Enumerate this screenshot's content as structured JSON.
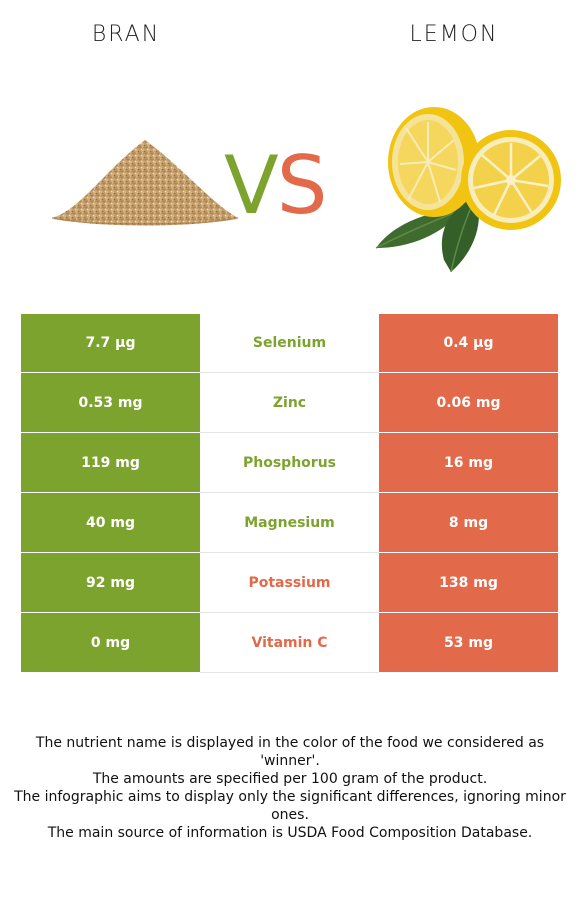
{
  "header": {
    "left_food": "BRAN",
    "right_food": "LEMON",
    "vs_v": "V",
    "vs_s": "S"
  },
  "colors": {
    "left_winner": "#7da32f",
    "right_winner": "#e2694a"
  },
  "nutrients": [
    {
      "name": "Selenium",
      "left": "7.7 µg",
      "right": "0.4 µg",
      "winner": "left"
    },
    {
      "name": "Zinc",
      "left": "0.53 mg",
      "right": "0.06 mg",
      "winner": "left"
    },
    {
      "name": "Phosphorus",
      "left": "119 mg",
      "right": "16 mg",
      "winner": "left"
    },
    {
      "name": "Magnesium",
      "left": "40 mg",
      "right": "8 mg",
      "winner": "left"
    },
    {
      "name": "Potassium",
      "left": "92 mg",
      "right": "138 mg",
      "winner": "right"
    },
    {
      "name": "Vitamin C",
      "left": "0 mg",
      "right": "53 mg",
      "winner": "right"
    }
  ],
  "footer": {
    "line1": "The nutrient name is displayed in the color of the food we considered as 'winner'.",
    "line2": "The amounts are specified per 100 gram of the product.",
    "line3": "The infographic aims to display only the significant differences, ignoring minor ones.",
    "line4": "The main source of information is USDA Food Composition Database."
  }
}
